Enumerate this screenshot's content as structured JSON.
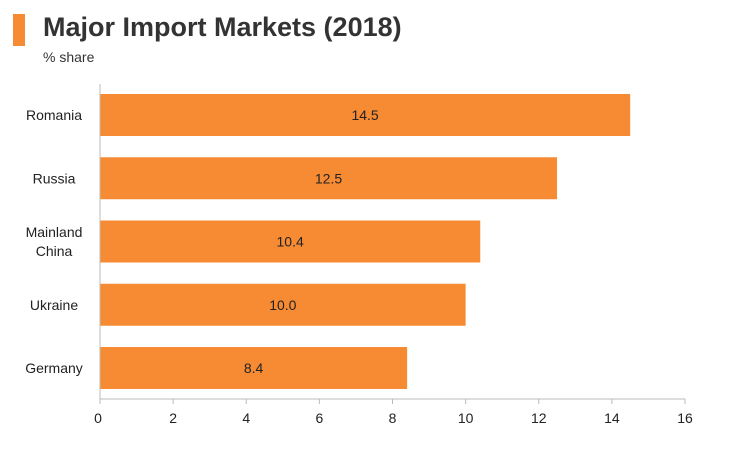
{
  "title": "Major Import Markets (2018)",
  "subtitle": "% share",
  "colors": {
    "bar": "#f68b33",
    "accent": "#f68b33",
    "axis": "#bbbbbb"
  },
  "chart_data": {
    "type": "bar",
    "orientation": "horizontal",
    "categories": [
      [
        "Romania"
      ],
      [
        "Russia"
      ],
      [
        "Mainland",
        "China"
      ],
      [
        "Ukraine"
      ],
      [
        "Germany"
      ]
    ],
    "values": [
      14.5,
      12.5,
      10.4,
      10.0,
      8.4
    ],
    "value_labels": [
      "14.5",
      "12.5",
      "10.4",
      "10.0",
      "8.4"
    ],
    "xlim": [
      0,
      16
    ],
    "x_ticks": [
      0,
      2,
      4,
      6,
      8,
      10,
      12,
      14,
      16
    ],
    "grid": false,
    "legend": "none"
  }
}
